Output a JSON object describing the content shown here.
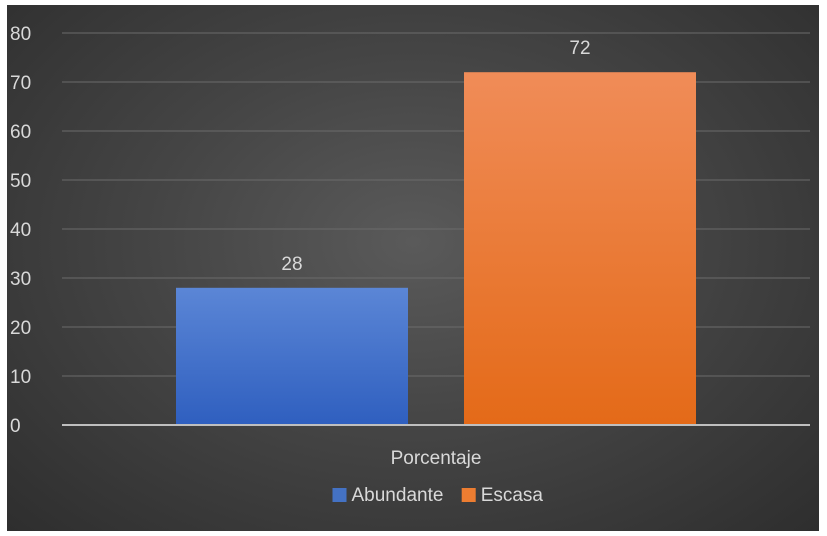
{
  "chart_data": {
    "type": "bar",
    "categories": [
      "Porcentaje"
    ],
    "series": [
      {
        "name": "Abundante",
        "values": [
          28
        ],
        "color": "#4472c4",
        "color_top": "#5b86d6",
        "color_bottom": "#2f5fbf"
      },
      {
        "name": "Escasa",
        "values": [
          72
        ],
        "color": "#ed7d31",
        "color_top": "#f08c58",
        "color_bottom": "#e46a18"
      }
    ],
    "ylim": [
      0,
      80
    ],
    "yticks": [
      "0",
      "10",
      "20",
      "30",
      "40",
      "50",
      "60",
      "70",
      "80"
    ],
    "grid": true,
    "legend": "bottom",
    "data_labels": true
  }
}
